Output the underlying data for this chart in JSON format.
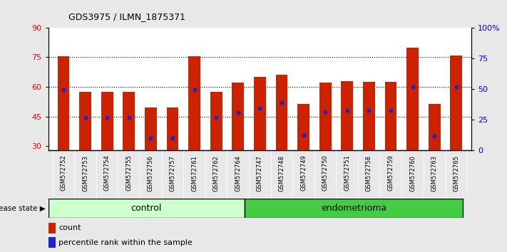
{
  "title": "GDS3975 / ILMN_1875371",
  "samples": [
    "GSM572752",
    "GSM572753",
    "GSM572754",
    "GSM572755",
    "GSM572756",
    "GSM572757",
    "GSM572761",
    "GSM572762",
    "GSM572764",
    "GSM572747",
    "GSM572748",
    "GSM572749",
    "GSM572750",
    "GSM572751",
    "GSM572758",
    "GSM572759",
    "GSM572760",
    "GSM572763",
    "GSM572765"
  ],
  "bar_heights": [
    75.5,
    57.5,
    57.5,
    57.5,
    49.5,
    49.5,
    75.5,
    57.5,
    62.0,
    65.0,
    66.0,
    51.5,
    62.0,
    63.0,
    62.5,
    62.5,
    80.0,
    51.5,
    76.0
  ],
  "percentile_positions": [
    58.5,
    44.5,
    44.5,
    44.5,
    34.0,
    34.0,
    58.5,
    44.5,
    47.0,
    49.0,
    52.0,
    35.5,
    47.5,
    48.0,
    48.0,
    48.0,
    60.0,
    35.0,
    60.0
  ],
  "group_labels": [
    "control",
    "endometrioma"
  ],
  "group_sizes": [
    9,
    10
  ],
  "ylim_left": [
    28,
    90
  ],
  "ylim_right": [
    0,
    100
  ],
  "yticks_left": [
    30,
    45,
    60,
    75,
    90
  ],
  "yticks_right": [
    0,
    25,
    50,
    75,
    100
  ],
  "bar_color": "#cc2200",
  "marker_color": "#2222cc",
  "bar_width": 0.55,
  "background_color": "#e8e8e8",
  "plot_bg_color": "#ffffff",
  "control_bg": "#ccffcc",
  "endo_bg": "#44cc44",
  "xticklabel_bg": "#d0d0d0"
}
